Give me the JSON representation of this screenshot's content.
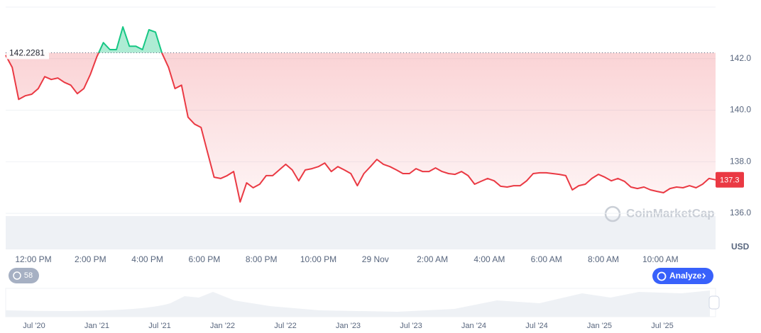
{
  "chart_data": {
    "type": "line",
    "series": [
      {
        "name": null,
        "color": "#ea3943",
        "above_color": "#16c784",
        "values": [
          142.13,
          141.66,
          140.42,
          140.56,
          140.62,
          140.84,
          141.3,
          141.19,
          141.25,
          141.08,
          140.97,
          140.64,
          140.84,
          141.39,
          142.07,
          142.62,
          142.35,
          142.35,
          143.23,
          142.48,
          142.48,
          142.35,
          143.12,
          143.03,
          142.21,
          141.66,
          140.84,
          140.97,
          139.73,
          139.46,
          139.33,
          138.36,
          137.4,
          137.35,
          137.46,
          137.62,
          136.44,
          137.18,
          136.99,
          137.13,
          137.46,
          137.46,
          137.68,
          137.9,
          137.68,
          137.26,
          137.68,
          137.73,
          137.81,
          137.95,
          137.62,
          137.81,
          137.68,
          137.54,
          137.07,
          137.54,
          137.81,
          138.09,
          137.9,
          137.81,
          137.68,
          137.54,
          137.54,
          137.73,
          137.62,
          137.62,
          137.76,
          137.62,
          137.54,
          137.51,
          137.62,
          137.46,
          137.13,
          137.24,
          137.35,
          137.26,
          137.05,
          137.02,
          137.07,
          137.07,
          137.26,
          137.54,
          137.57,
          137.57,
          137.54,
          137.51,
          137.46,
          136.91,
          137.07,
          137.13,
          137.35,
          137.51,
          137.4,
          137.26,
          137.35,
          137.24,
          137.02,
          136.96,
          137.02,
          136.91,
          136.85,
          136.8,
          136.96,
          137.02,
          136.99,
          137.07,
          136.99,
          137.13,
          137.35,
          137.3
        ]
      }
    ],
    "baseline": 142.2281,
    "current_price": 137.3,
    "ylim": [
      134.6,
      144.0
    ],
    "yticks": [
      {
        "value": 136,
        "label": "136.0"
      },
      {
        "value": 138,
        "label": "138.0"
      },
      {
        "value": 140,
        "label": "140.0"
      },
      {
        "value": 142,
        "label": "142.0"
      }
    ],
    "currency": "USD",
    "x_labels": [
      "12:00 PM",
      "2:00 PM",
      "4:00 PM",
      "6:00 PM",
      "8:00 PM",
      "10:00 PM",
      "29 Nov",
      "2:00 AM",
      "4:00 AM",
      "6:00 AM",
      "8:00 AM",
      "10:00 AM"
    ],
    "navigator_labels": [
      "Jul '20",
      "Jan '21",
      "Jul '21",
      "Jan '22",
      "Jul '22",
      "Jan '23",
      "Jul '23",
      "Jan '24",
      "Jul '24",
      "Jan '25",
      "Jul '25"
    ],
    "badge": "58",
    "button": "Analyze",
    "watermark": "CoinMarketCap",
    "grid": true
  }
}
